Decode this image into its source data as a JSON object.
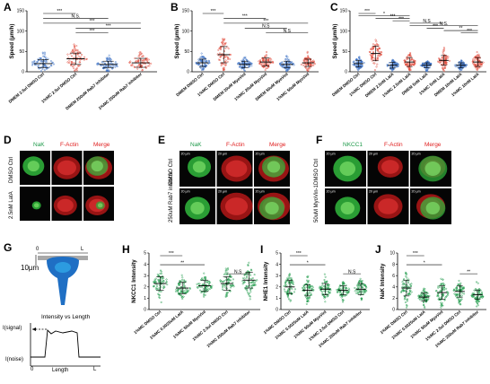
{
  "panel_letters": [
    "A",
    "B",
    "C",
    "D",
    "E",
    "F",
    "G",
    "H",
    "I",
    "J"
  ],
  "chart_data": [
    {
      "id": "A",
      "type": "scatter",
      "ylabel": "Speed (µm/h)",
      "ylim": [
        0,
        150
      ],
      "yticks": [
        0,
        50,
        100,
        150
      ],
      "categories": [
        "DMEM 2.5ul DMSO Ctrl",
        "1%MC 2.5ul DMSO Ctrl",
        "DMEM 250uM Rab7 inhibitor",
        "1%MC 250uM Rab7 inhibitor"
      ],
      "colors": [
        "#3a6fc4",
        "#e14a3a",
        "#3a6fc4",
        "#e14a3a"
      ],
      "means": [
        20,
        32,
        18,
        22
      ],
      "sd": [
        10,
        14,
        8,
        11
      ],
      "sig": [
        {
          "from": 0,
          "to": 1,
          "text": "***"
        },
        {
          "from": 0,
          "to": 2,
          "text": "N.S."
        },
        {
          "from": 0,
          "to": 3,
          "text": "***"
        },
        {
          "from": 1,
          "to": 3,
          "text": "***"
        },
        {
          "from": 1,
          "to": 2,
          "text": "***"
        }
      ]
    },
    {
      "id": "B",
      "type": "scatter",
      "ylabel": "Speed (µm/h)",
      "ylim": [
        0,
        150
      ],
      "yticks": [
        0,
        50,
        100,
        150
      ],
      "categories": [
        "DMEM DMSO Ctrl",
        "1%MC DMSO Ctrl",
        "DMEM 20uM MyoVinl",
        "1%MC 20uM MyoVinl",
        "DMEM 50uM MyoVinl",
        "1%MC 50uM MyoVinl"
      ],
      "colors": [
        "#3a6fc4",
        "#e14a3a",
        "#3a6fc4",
        "#e14a3a",
        "#3a6fc4",
        "#e14a3a"
      ],
      "means": [
        22,
        42,
        18,
        24,
        18,
        22
      ],
      "sd": [
        9,
        20,
        8,
        10,
        8,
        9
      ],
      "sig": [
        {
          "from": 0,
          "to": 1,
          "text": "***"
        },
        {
          "from": 1,
          "to": 3,
          "text": "***"
        },
        {
          "from": 1,
          "to": 5,
          "text": "***"
        },
        {
          "from": 2,
          "to": 4,
          "text": "N.S"
        },
        {
          "from": 3,
          "to": 5,
          "text": "N.S"
        }
      ]
    },
    {
      "id": "C",
      "type": "scatter",
      "ylabel": "Speed (µm/h)",
      "ylim": [
        0,
        150
      ],
      "yticks": [
        0,
        50,
        100,
        150
      ],
      "categories": [
        "DMEM DMSO Ctrl",
        "1%MC DMSO Ctrl",
        "DMEM 2.5nM LatA",
        "1%MC 2.5nM LatA",
        "DMEM 5nM LatA",
        "1%MC 5nM LatA",
        "DMEM 10nM LatA",
        "1%MC 10nM LatA"
      ],
      "colors": [
        "#3a6fc4",
        "#e14a3a",
        "#3a6fc4",
        "#e14a3a",
        "#3a6fc4",
        "#e14a3a",
        "#3a6fc4",
        "#e14a3a"
      ],
      "means": [
        20,
        45,
        16,
        24,
        16,
        28,
        16,
        24
      ],
      "sd": [
        8,
        18,
        7,
        11,
        6,
        12,
        6,
        11
      ],
      "sig": [
        {
          "from": 0,
          "to": 1,
          "text": "***"
        },
        {
          "from": 0,
          "to": 3,
          "text": "*"
        },
        {
          "from": 1,
          "to": 3,
          "text": "***"
        },
        {
          "from": 2,
          "to": 3,
          "text": "***"
        },
        {
          "from": 3,
          "to": 5,
          "text": "N.S"
        },
        {
          "from": 3,
          "to": 7,
          "text": "N.S."
        },
        {
          "from": 4,
          "to": 5,
          "text": "***"
        },
        {
          "from": 5,
          "to": 7,
          "text": "**"
        },
        {
          "from": 6,
          "to": 7,
          "text": "***"
        }
      ]
    },
    {
      "id": "H",
      "type": "scatter",
      "ylabel": "NKCC1 Intensity",
      "ylim": [
        0,
        5
      ],
      "yticks": [
        0,
        1,
        2,
        3,
        4,
        5
      ],
      "categories": [
        "1%MC DMSO Ctrl",
        "1%MC 0.0025uM LatA",
        "1%MC 50uM MyoVinl",
        "1%MC 2.5ul DMSO Ctrl",
        "1%MC 250uM Rab7 inhibitor"
      ],
      "colors": [
        "#1e9a4a",
        "#1e9a4a",
        "#1e9a4a",
        "#1e9a4a",
        "#1e9a4a"
      ],
      "means": [
        2.3,
        1.9,
        2.1,
        2.3,
        2.6
      ],
      "sd": [
        0.6,
        0.5,
        0.5,
        0.6,
        0.7
      ],
      "sig": [
        {
          "from": 0,
          "to": 1,
          "text": "***"
        },
        {
          "from": 0,
          "to": 2,
          "text": "**"
        },
        {
          "from": 3,
          "to": 4,
          "text": "N.S"
        }
      ]
    },
    {
      "id": "I",
      "type": "scatter",
      "ylabel": "NHE1 Intensity",
      "ylim": [
        0,
        5
      ],
      "yticks": [
        0,
        1,
        2,
        3,
        4,
        5
      ],
      "categories": [
        "1%MC DMSO Ctrl",
        "1%MC 0.0025uM LatA",
        "1%MC 50uM MyoVinl",
        "1%MC 2.5ul DMSO Ctrl",
        "1%MC 250uM Rab7 inhibitor"
      ],
      "colors": [
        "#1e9a4a",
        "#1e9a4a",
        "#1e9a4a",
        "#1e9a4a",
        "#1e9a4a"
      ],
      "means": [
        2.0,
        1.7,
        1.8,
        1.7,
        1.8
      ],
      "sd": [
        0.6,
        0.5,
        0.5,
        0.4,
        0.5
      ],
      "sig": [
        {
          "from": 0,
          "to": 1,
          "text": "***"
        },
        {
          "from": 0,
          "to": 2,
          "text": "*"
        },
        {
          "from": 3,
          "to": 4,
          "text": "N.S"
        }
      ]
    },
    {
      "id": "J",
      "type": "scatter",
      "ylabel": "NaK Intensity",
      "ylim": [
        0,
        10
      ],
      "yticks": [
        0,
        2,
        4,
        6,
        8,
        10
      ],
      "categories": [
        "1%MC DMSO Ctrl",
        "1%MC 0.0025uM LatA",
        "1%MC 50uM MyoVinl",
        "1%MC 2.5ul DMSO Ctrl",
        "1%MC 250uM Rab7 inhibitor"
      ],
      "colors": [
        "#1e9a4a",
        "#1e9a4a",
        "#1e9a4a",
        "#1e9a4a",
        "#1e9a4a"
      ],
      "means": [
        3.8,
        2.2,
        3.0,
        3.2,
        2.6
      ],
      "sd": [
        1.4,
        0.7,
        1.2,
        1.0,
        0.8
      ],
      "sig": [
        {
          "from": 0,
          "to": 1,
          "text": "***"
        },
        {
          "from": 0,
          "to": 2,
          "text": "*"
        },
        {
          "from": 3,
          "to": 4,
          "text": "**"
        }
      ]
    }
  ],
  "image_panels": {
    "D": {
      "headers": [
        "NaK",
        "F-Actin",
        "Merge"
      ],
      "header_colors": [
        "#1e9a4a",
        "#e02020",
        "#e02020"
      ],
      "rows": [
        "DMSO Ctrl",
        "2.5nM LatA"
      ]
    },
    "E": {
      "headers": [
        "NaK",
        "F-Actin",
        "Merge"
      ],
      "header_colors": [
        "#1e9a4a",
        "#e02020",
        "#e02020"
      ],
      "rows": [
        "DMSO Ctrl",
        "250uM Rab7 inhibitor"
      ],
      "scale": "20 µm"
    },
    "F": {
      "headers": [
        "NKCC1",
        "F-Actin",
        "Merge"
      ],
      "header_colors": [
        "#1e9a4a",
        "#e02020",
        "#e02020"
      ],
      "rows": [
        "DMSO Ctrl",
        "50uM MyoVin-1"
      ],
      "scale": "20 µm"
    }
  },
  "schematic": {
    "thickness": "10µm",
    "start": "0",
    "end": "L",
    "plot_title": "Intensity vs Length",
    "signal": "I(signal)",
    "noise": "I(noise)",
    "xaxis_start": "0",
    "xaxis_label": "Length",
    "xaxis_end": "L"
  }
}
